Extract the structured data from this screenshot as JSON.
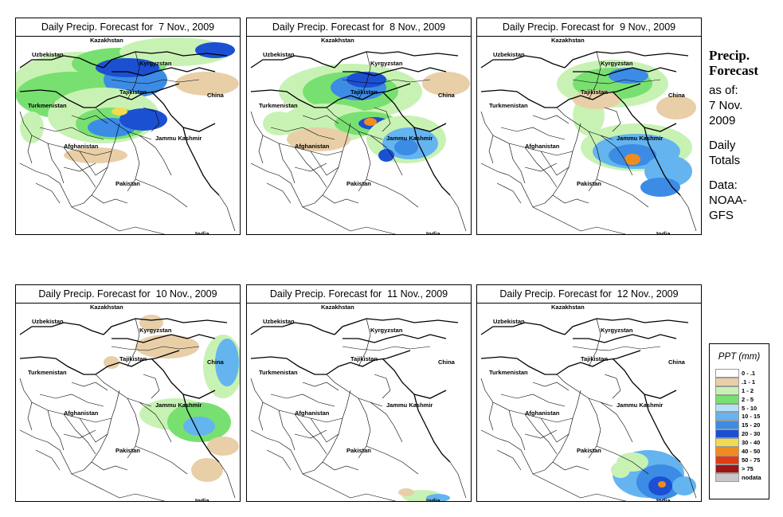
{
  "panels": [
    {
      "title": "Daily Precip. Forecast for  7 Nov., 2009"
    },
    {
      "title": "Daily Precip. Forecast for  8 Nov., 2009"
    },
    {
      "title": "Daily Precip. Forecast for  9 Nov., 2009"
    },
    {
      "title": "Daily Precip. Forecast for  10 Nov., 2009"
    },
    {
      "title": "Daily Precip. Forecast for  11 Nov., 2009"
    },
    {
      "title": "Daily Precip. Forecast for  12 Nov., 2009"
    }
  ],
  "map_labels": {
    "kazakhstan": "Kazakhstan",
    "uzbekistan": "Uzbekistan",
    "kyrgyzstan": "Kyrgyzstan",
    "tajikistan": "Tajikistan",
    "turkmenistan": "Turkmenistan",
    "china": "China",
    "afghanistan": "Afghanistan",
    "jammu_kashmir": "Jammu Kashmir",
    "pakistan": "Pakistan",
    "india": "India"
  },
  "side": {
    "title_line1": "Precip.",
    "title_line2": "Forecast",
    "asof_line1": "as of:",
    "asof_line2": "7 Nov.",
    "asof_line3": "2009",
    "totals_line1": "Daily",
    "totals_line2": "Totals",
    "data_line1": "Data:",
    "data_line2": "NOAA-",
    "data_line3": "GFS"
  },
  "legend": {
    "title": "PPT (mm)",
    "items": [
      {
        "label": "0 - .1",
        "color": "#ffffff"
      },
      {
        "label": ".1 - 1",
        "color": "#e8cfa8"
      },
      {
        "label": "1 - 2",
        "color": "#c8f2b4"
      },
      {
        "label": "2 - 5",
        "color": "#78e070"
      },
      {
        "label": "5 - 10",
        "color": "#b4e0f8"
      },
      {
        "label": "10 - 15",
        "color": "#64b4f0"
      },
      {
        "label": "15 - 20",
        "color": "#3c8ce6"
      },
      {
        "label": "20 - 30",
        "color": "#1c50d2"
      },
      {
        "label": "30 - 40",
        "color": "#f0dc50"
      },
      {
        "label": "40 - 50",
        "color": "#f08c1e"
      },
      {
        "label": "50 - 75",
        "color": "#e03c14"
      },
      {
        "label": "> 75",
        "color": "#a01414"
      },
      {
        "label": "nodata",
        "color": "#c8c8c8"
      }
    ]
  }
}
